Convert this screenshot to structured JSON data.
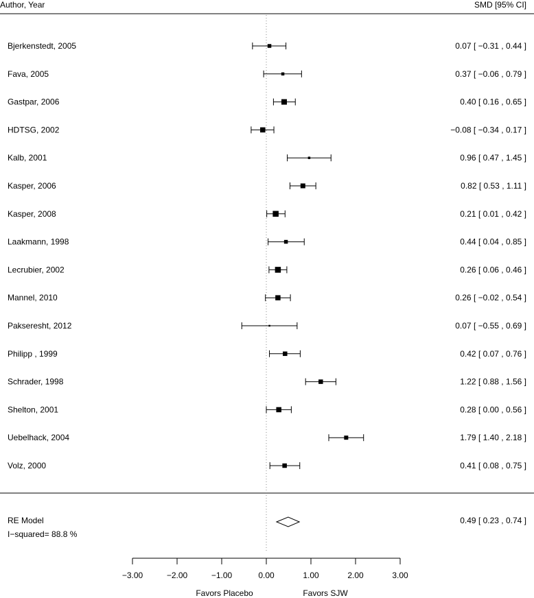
{
  "chart_data": {
    "type": "forest",
    "header_left": "Author, Year",
    "header_right": "SMD [95% CI]",
    "studies": [
      {
        "label": "Bjerkenstedt, 2005",
        "smd": 0.07,
        "lower": -0.31,
        "upper": 0.44,
        "weight": 5.5,
        "ci_text": "0.07 [ −0.31 , 0.44 ]"
      },
      {
        "label": "Fava, 2005",
        "smd": 0.37,
        "lower": -0.06,
        "upper": 0.79,
        "weight": 4.5,
        "ci_text": "0.37 [ −0.06 , 0.79 ]"
      },
      {
        "label": "Gastpar, 2006",
        "smd": 0.4,
        "lower": 0.16,
        "upper": 0.65,
        "weight": 8.0,
        "ci_text": "0.40 [ 0.16 , 0.65 ]"
      },
      {
        "label": "HDTSG, 2002",
        "smd": -0.08,
        "lower": -0.34,
        "upper": 0.17,
        "weight": 7.5,
        "ci_text": "−0.08 [ −0.34 , 0.17 ]"
      },
      {
        "label": "Kalb, 2001",
        "smd": 0.96,
        "lower": 0.47,
        "upper": 1.45,
        "weight": 3.5,
        "ci_text": "0.96 [ 0.47 , 1.45 ]"
      },
      {
        "label": "Kasper, 2006",
        "smd": 0.82,
        "lower": 0.53,
        "upper": 1.11,
        "weight": 7.0,
        "ci_text": "0.82 [ 0.53 , 1.11 ]"
      },
      {
        "label": "Kasper, 2008",
        "smd": 0.21,
        "lower": 0.01,
        "upper": 0.42,
        "weight": 8.5,
        "ci_text": "0.21 [ 0.01 , 0.42 ]"
      },
      {
        "label": "Laakmann, 1998",
        "smd": 0.44,
        "lower": 0.04,
        "upper": 0.85,
        "weight": 5.5,
        "ci_text": "0.44 [ 0.04 , 0.85 ]"
      },
      {
        "label": "Lecrubier, 2002",
        "smd": 0.26,
        "lower": 0.06,
        "upper": 0.46,
        "weight": 8.5,
        "ci_text": "0.26 [ 0.06 , 0.46 ]"
      },
      {
        "label": "Mannel, 2010",
        "smd": 0.26,
        "lower": -0.02,
        "upper": 0.54,
        "weight": 7.5,
        "ci_text": "0.26 [ −0.02 , 0.54 ]"
      },
      {
        "label": "Pakseresht, 2012",
        "smd": 0.07,
        "lower": -0.55,
        "upper": 0.69,
        "weight": 2.5,
        "ci_text": "0.07 [ −0.55 , 0.69 ]"
      },
      {
        "label": "Philipp , 1999",
        "smd": 0.42,
        "lower": 0.07,
        "upper": 0.76,
        "weight": 6.5,
        "ci_text": "0.42 [ 0.07 , 0.76 ]"
      },
      {
        "label": "Schrader, 1998",
        "smd": 1.22,
        "lower": 0.88,
        "upper": 1.56,
        "weight": 6.5,
        "ci_text": "1.22 [ 0.88 , 1.56 ]"
      },
      {
        "label": "Shelton, 2001",
        "smd": 0.28,
        "lower": 0.0,
        "upper": 0.56,
        "weight": 7.5,
        "ci_text": "0.28 [ 0.00 , 0.56 ]"
      },
      {
        "label": "Uebelhack, 2004",
        "smd": 1.79,
        "lower": 1.4,
        "upper": 2.18,
        "weight": 6.0,
        "ci_text": "1.79 [ 1.40 , 2.18 ]"
      },
      {
        "label": "Volz, 2000",
        "smd": 0.41,
        "lower": 0.08,
        "upper": 0.75,
        "weight": 6.5,
        "ci_text": "0.41 [ 0.08 , 0.75 ]"
      }
    ],
    "summary": {
      "label": "RE Model",
      "estimate": 0.49,
      "lower": 0.23,
      "upper": 0.74,
      "ci_text": "0.49 [ 0.23 , 0.74 ]",
      "heterogeneity": "I−squared= 88.8 %"
    },
    "x_axis": {
      "ticks": [
        -3,
        -2,
        -1,
        0,
        1,
        2,
        3
      ],
      "tick_labels": [
        "−3.00",
        "−2.00",
        "−1.00",
        "0.00",
        "1.00",
        "2.00",
        "3.00"
      ],
      "xlim": [
        -3,
        3
      ],
      "left_label": "Favors Placebo",
      "right_label": "Favors SJW"
    },
    "reference_line": 0
  }
}
